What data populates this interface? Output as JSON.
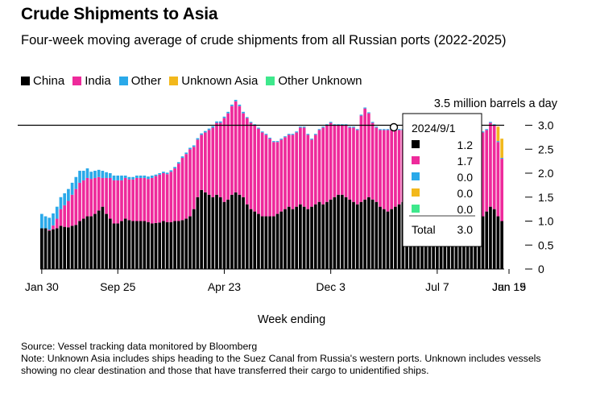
{
  "header": {
    "title": "Crude Shipments to Asia",
    "subtitle": "Four-week moving average of crude shipments from all Russian ports (2022-2025)"
  },
  "footer": {
    "source": "Source: Vessel tracking data monitored by Bloomberg",
    "note": "Note: Unknown Asia includes ships heading to the Suez Canal from Russia's western ports. Unknown includes vessels showing no clear destination and those that have transferred their cargo to unidentified ships."
  },
  "colors": {
    "China": "#000000",
    "India": "#ee2a9b",
    "Other": "#2aa9e9",
    "Unknown Asia": "#f2b81c",
    "Other Unknown": "#3ee88c"
  },
  "chart_data": {
    "type": "bar",
    "stacked": true,
    "title": "Crude Shipments to Asia",
    "xlabel": "Week ending",
    "ylabel": "3.5 million barrels a day",
    "ylim": [
      0,
      3.5
    ],
    "yticks": [
      "0",
      "0.5",
      "1.0",
      "1.5",
      "2.0",
      "2.5",
      "3.0"
    ],
    "xticks": [
      "Jan 30",
      "Sep 25",
      "Apr 23",
      "Dec 3",
      "Jul 7",
      "Jan 19",
      "Jun 15"
    ],
    "reference_line": 3.0,
    "legend_position": "top-left",
    "series": [
      {
        "name": "China",
        "values": [
          0.85,
          0.85,
          0.8,
          0.83,
          0.85,
          0.9,
          0.88,
          0.87,
          0.9,
          0.92,
          1.0,
          1.05,
          1.1,
          1.1,
          1.15,
          1.22,
          1.3,
          1.15,
          1.05,
          0.95,
          0.95,
          1.0,
          1.05,
          1.02,
          1.0,
          1.0,
          1.0,
          1.0,
          0.98,
          0.95,
          0.96,
          0.97,
          1.0,
          0.98,
          0.98,
          1.0,
          1.0,
          1.02,
          1.05,
          1.1,
          1.25,
          1.5,
          1.65,
          1.6,
          1.55,
          1.5,
          1.55,
          1.5,
          1.4,
          1.45,
          1.55,
          1.6,
          1.55,
          1.5,
          1.35,
          1.25,
          1.2,
          1.15,
          1.1,
          1.1,
          1.1,
          1.1,
          1.15,
          1.2,
          1.25,
          1.3,
          1.25,
          1.3,
          1.35,
          1.3,
          1.25,
          1.3,
          1.35,
          1.4,
          1.35,
          1.4,
          1.45,
          1.5,
          1.55,
          1.55,
          1.5,
          1.45,
          1.4,
          1.35,
          1.4,
          1.45,
          1.5,
          1.45,
          1.4,
          1.3,
          1.25,
          1.2,
          1.25,
          1.3,
          1.35,
          1.4,
          1.4,
          1.35,
          1.3,
          1.25,
          1.2,
          1.2,
          1.2,
          1.2,
          1.2,
          1.2,
          1.2,
          1.15,
          1.1,
          1.1,
          1.1,
          1.1,
          1.05,
          1.0,
          1.0,
          1.05,
          1.1,
          1.2,
          1.3,
          1.25,
          1.1,
          1.0
        ]
      },
      {
        "name": "India",
        "values": [
          0.0,
          0.0,
          0.02,
          0.08,
          0.2,
          0.35,
          0.45,
          0.55,
          0.65,
          0.75,
          0.8,
          0.8,
          0.8,
          0.78,
          0.75,
          0.7,
          0.6,
          0.75,
          0.85,
          0.9,
          0.9,
          0.85,
          0.85,
          0.85,
          0.87,
          0.9,
          0.9,
          0.9,
          0.9,
          0.95,
          0.98,
          1.0,
          1.0,
          1.0,
          1.05,
          1.1,
          1.2,
          1.3,
          1.35,
          1.4,
          1.3,
          1.2,
          1.15,
          1.25,
          1.35,
          1.45,
          1.5,
          1.55,
          1.75,
          1.8,
          1.85,
          1.9,
          1.85,
          1.75,
          1.8,
          1.8,
          1.8,
          1.78,
          1.75,
          1.7,
          1.62,
          1.55,
          1.5,
          1.5,
          1.5,
          1.5,
          1.55,
          1.55,
          1.6,
          1.65,
          1.55,
          1.4,
          1.45,
          1.5,
          1.6,
          1.6,
          1.6,
          1.5,
          1.45,
          1.45,
          1.5,
          1.5,
          1.55,
          1.55,
          1.8,
          1.9,
          1.75,
          1.6,
          1.55,
          1.6,
          1.65,
          1.7,
          1.65,
          1.6,
          1.55,
          1.5,
          1.55,
          1.6,
          1.6,
          1.6,
          1.7,
          1.7,
          1.7,
          1.7,
          1.7,
          1.7,
          1.7,
          1.65,
          1.65,
          1.65,
          1.65,
          1.7,
          1.75,
          1.8,
          1.85,
          1.85,
          1.75,
          1.7,
          1.75,
          1.75,
          1.55,
          1.3
        ]
      },
      {
        "name": "Other",
        "values": [
          0.3,
          0.25,
          0.25,
          0.25,
          0.25,
          0.25,
          0.25,
          0.25,
          0.25,
          0.25,
          0.25,
          0.2,
          0.2,
          0.15,
          0.15,
          0.15,
          0.15,
          0.12,
          0.1,
          0.1,
          0.1,
          0.1,
          0.05,
          0.05,
          0.05,
          0.05,
          0.05,
          0.05,
          0.05,
          0.05,
          0.03,
          0.03,
          0.03,
          0.03,
          0.03,
          0.03,
          0.03,
          0.03,
          0.03,
          0.03,
          0.03,
          0.03,
          0.03,
          0.03,
          0.03,
          0.03,
          0.03,
          0.03,
          0.03,
          0.03,
          0.03,
          0.03,
          0.03,
          0.03,
          0.02,
          0.02,
          0.02,
          0.02,
          0.02,
          0.02,
          0.02,
          0.02,
          0.02,
          0.02,
          0.02,
          0.02,
          0.02,
          0.02,
          0.02,
          0.02,
          0.02,
          0.02,
          0.02,
          0.02,
          0.02,
          0.02,
          0.02,
          0.02,
          0.02,
          0.02,
          0.02,
          0.02,
          0.02,
          0.02,
          0.02,
          0.02,
          0.02,
          0.02,
          0.02,
          0.02,
          0.02,
          0.02,
          0.02,
          0.02,
          0.02,
          0.02,
          0.02,
          0.02,
          0.02,
          0.02,
          0.02,
          0.02,
          0.02,
          0.02,
          0.02,
          0.02,
          0.02,
          0.02,
          0.02,
          0.02,
          0.02,
          0.02,
          0.02,
          0.02,
          0.02,
          0.02,
          0.02,
          0.02,
          0.02,
          0.02,
          0.02,
          0.02
        ]
      },
      {
        "name": "Unknown Asia",
        "values": [
          0.0,
          0.0,
          0.0,
          0.0,
          0.0,
          0.0,
          0.0,
          0.0,
          0.0,
          0.0,
          0.0,
          0.0,
          0.0,
          0.0,
          0.0,
          0.0,
          0.0,
          0.0,
          0.0,
          0.0,
          0.0,
          0.0,
          0.0,
          0.0,
          0.0,
          0.0,
          0.0,
          0.0,
          0.0,
          0.0,
          0.0,
          0.0,
          0.0,
          0.0,
          0.0,
          0.0,
          0.0,
          0.0,
          0.0,
          0.0,
          0.0,
          0.0,
          0.0,
          0.0,
          0.0,
          0.0,
          0.0,
          0.0,
          0.0,
          0.0,
          0.0,
          0.0,
          0.0,
          0.0,
          0.0,
          0.0,
          0.0,
          0.0,
          0.0,
          0.0,
          0.0,
          0.0,
          0.0,
          0.0,
          0.0,
          0.0,
          0.0,
          0.0,
          0.0,
          0.0,
          0.0,
          0.0,
          0.0,
          0.0,
          0.0,
          0.0,
          0.0,
          0.0,
          0.0,
          0.0,
          0.0,
          0.0,
          0.0,
          0.0,
          0.0,
          0.0,
          0.0,
          0.0,
          0.0,
          0.0,
          0.0,
          0.0,
          0.0,
          0.0,
          0.0,
          0.0,
          0.0,
          0.0,
          0.0,
          0.0,
          0.0,
          0.0,
          0.0,
          0.0,
          0.0,
          0.0,
          0.0,
          0.0,
          0.0,
          0.0,
          0.0,
          0.0,
          0.0,
          0.0,
          0.0,
          0.0,
          0.0,
          0.0,
          0.0,
          0.0,
          0.3,
          0.4
        ]
      },
      {
        "name": "Other Unknown",
        "values": [
          0.0,
          0.0,
          0.0,
          0.0,
          0.0,
          0.0,
          0.0,
          0.0,
          0.0,
          0.0,
          0.0,
          0.0,
          0.0,
          0.0,
          0.0,
          0.0,
          0.0,
          0.0,
          0.0,
          0.0,
          0.0,
          0.0,
          0.0,
          0.0,
          0.0,
          0.0,
          0.0,
          0.0,
          0.0,
          0.0,
          0.0,
          0.0,
          0.0,
          0.0,
          0.0,
          0.0,
          0.0,
          0.0,
          0.0,
          0.0,
          0.0,
          0.0,
          0.0,
          0.0,
          0.0,
          0.0,
          0.0,
          0.0,
          0.0,
          0.0,
          0.0,
          0.0,
          0.0,
          0.0,
          0.0,
          0.0,
          0.0,
          0.0,
          0.0,
          0.0,
          0.0,
          0.0,
          0.0,
          0.0,
          0.0,
          0.0,
          0.0,
          0.0,
          0.0,
          0.0,
          0.0,
          0.0,
          0.0,
          0.0,
          0.0,
          0.0,
          0.0,
          0.0,
          0.0,
          0.0,
          0.0,
          0.0,
          0.0,
          0.0,
          0.0,
          0.0,
          0.0,
          0.0,
          0.0,
          0.0,
          0.0,
          0.0,
          0.0,
          0.0,
          0.0,
          0.0,
          0.0,
          0.0,
          0.0,
          0.0,
          0.0,
          0.0,
          0.0,
          0.0,
          0.0,
          0.0,
          0.0,
          0.0,
          0.0,
          0.0,
          0.0,
          0.0,
          0.0,
          0.0,
          0.0,
          0.0,
          0.0,
          0.0,
          0.0,
          0.0,
          0.0,
          0.0
        ]
      }
    ],
    "tooltip": {
      "date": "2024/9/1",
      "rows": [
        {
          "series": "China",
          "value": "1.2"
        },
        {
          "series": "India",
          "value": "1.7"
        },
        {
          "series": "Other",
          "value": "0.0"
        },
        {
          "series": "Unknown Asia",
          "value": "0.0"
        },
        {
          "series": "Other Unknown",
          "value": "0.0"
        }
      ],
      "total_label": "Total",
      "total_value": "3.0"
    }
  }
}
